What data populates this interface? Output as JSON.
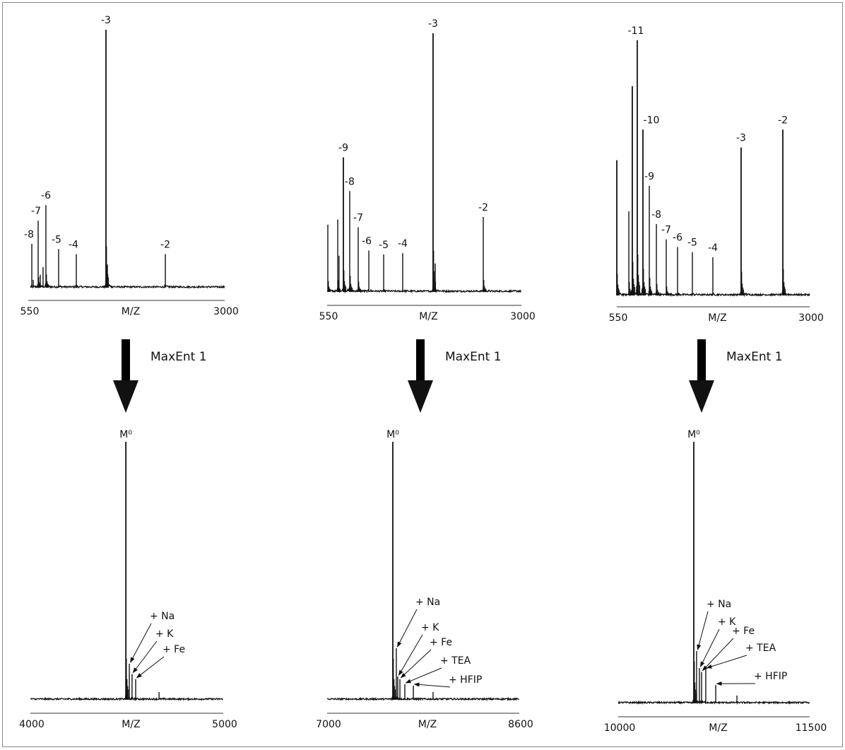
{
  "chart_data": [
    {
      "type": "line",
      "name": "esi-spectrum-1",
      "xlabel": "M/Z",
      "xlim": [
        550,
        3000
      ],
      "tick_labels": [
        "550",
        "3000"
      ],
      "ylabel": "",
      "ylim": [
        0,
        100
      ],
      "peaks": [
        {
          "mz": 568,
          "intensity": 17,
          "label": "-8"
        },
        {
          "mz": 586,
          "intensity": 3,
          "label": ""
        },
        {
          "mz": 648,
          "intensity": 26,
          "label": "-7"
        },
        {
          "mz": 675,
          "intensity": 5,
          "label": ""
        },
        {
          "mz": 710,
          "intensity": 8,
          "label": ""
        },
        {
          "mz": 746,
          "intensity": 32,
          "label": "-6"
        },
        {
          "mz": 906,
          "intensity": 15,
          "label": "-5"
        },
        {
          "mz": 1129,
          "intensity": 13,
          "label": "-4"
        },
        {
          "mz": 1503,
          "intensity": 100,
          "label": "-3"
        },
        {
          "mz": 1521,
          "intensity": 9,
          "label": ""
        },
        {
          "mz": 2252,
          "intensity": 13,
          "label": "-2"
        }
      ]
    },
    {
      "type": "line",
      "name": "esi-spectrum-2",
      "xlabel": "M/Z",
      "xlim": [
        550,
        3000
      ],
      "tick_labels": [
        "550",
        "3000"
      ],
      "ylabel": "",
      "ylim": [
        0,
        100
      ],
      "peaks": [
        {
          "mz": 559,
          "intensity": 26,
          "label": ""
        },
        {
          "mz": 684,
          "intensity": 28,
          "label": ""
        },
        {
          "mz": 700,
          "intensity": 14,
          "label": ""
        },
        {
          "mz": 755,
          "intensity": 52,
          "label": "-9"
        },
        {
          "mz": 835,
          "intensity": 39,
          "label": "-8"
        },
        {
          "mz": 942,
          "intensity": 25,
          "label": "-7"
        },
        {
          "mz": 1076,
          "intensity": 16,
          "label": "-6"
        },
        {
          "mz": 1263,
          "intensity": 14.5,
          "label": "-5"
        },
        {
          "mz": 1503,
          "intensity": 15,
          "label": "-4"
        },
        {
          "mz": 1886,
          "intensity": 100,
          "label": "-3"
        },
        {
          "mz": 1913,
          "intensity": 11,
          "label": ""
        },
        {
          "mz": 2519,
          "intensity": 29,
          "label": "-2"
        }
      ]
    },
    {
      "type": "line",
      "name": "esi-spectrum-3",
      "xlabel": "M/Z",
      "xlim": [
        550,
        3000
      ],
      "tick_labels": [
        "550",
        "3000"
      ],
      "ylabel": "",
      "ylim": [
        0,
        100
      ],
      "peaks": [
        {
          "mz": 550,
          "intensity": 53,
          "label": ""
        },
        {
          "mz": 703,
          "intensity": 33,
          "label": ""
        },
        {
          "mz": 747,
          "intensity": 82,
          "label": ""
        },
        {
          "mz": 810,
          "intensity": 100,
          "label": "-11"
        },
        {
          "mz": 882,
          "intensity": 65,
          "label": "-10"
        },
        {
          "mz": 963,
          "intensity": 43,
          "label": "-9"
        },
        {
          "mz": 1053,
          "intensity": 28,
          "label": "-8"
        },
        {
          "mz": 1178,
          "intensity": 22,
          "label": "-7"
        },
        {
          "mz": 1322,
          "intensity": 19,
          "label": "-6"
        },
        {
          "mz": 1510,
          "intensity": 17,
          "label": "-5"
        },
        {
          "mz": 1770,
          "intensity": 15,
          "label": "-4"
        },
        {
          "mz": 2129,
          "intensity": 58,
          "label": "-3"
        },
        {
          "mz": 2659,
          "intensity": 65,
          "label": "-2"
        }
      ]
    },
    {
      "type": "line",
      "name": "deconvoluted-spectrum-1",
      "xlabel": "M/Z",
      "xlim": [
        4000,
        5000
      ],
      "tick_labels": [
        "4000",
        "5000"
      ],
      "ylabel": "",
      "ylim": [
        0,
        100
      ],
      "peaks": [
        {
          "mz": 4495,
          "intensity": 100,
          "label": "M⁰"
        },
        {
          "mz": 4513,
          "intensity": 14,
          "label": "+ Na"
        },
        {
          "mz": 4527,
          "intensity": 10,
          "label": "+ K"
        },
        {
          "mz": 4546,
          "intensity": 8,
          "label": "+ Fe"
        },
        {
          "mz": 4667,
          "intensity": 3,
          "label": ""
        }
      ]
    },
    {
      "type": "line",
      "name": "deconvoluted-spectrum-2",
      "xlabel": "M/Z",
      "xlim": [
        7000,
        8600
      ],
      "tick_labels": [
        "7000",
        "8600"
      ],
      "ylabel": "",
      "ylim": [
        0,
        100
      ],
      "peaks": [
        {
          "mz": 7547,
          "intensity": 100,
          "label": "M⁰"
        },
        {
          "mz": 7576,
          "intensity": 20,
          "label": "+ Na"
        },
        {
          "mz": 7588,
          "intensity": 9,
          "label": "+ K"
        },
        {
          "mz": 7606,
          "intensity": 8,
          "label": "+ Fe"
        },
        {
          "mz": 7647,
          "intensity": 6,
          "label": "+ TEA"
        },
        {
          "mz": 7718,
          "intensity": 5.5,
          "label": "+ HFIP"
        },
        {
          "mz": 7882,
          "intensity": 3,
          "label": ""
        }
      ]
    },
    {
      "type": "line",
      "name": "deconvoluted-spectrum-3",
      "xlabel": "M/Z",
      "xlim": [
        10000,
        11500
      ],
      "tick_labels": [
        "10000",
        "11500"
      ],
      "ylabel": "",
      "ylim": [
        0,
        100
      ],
      "peaks": [
        {
          "mz": 10592,
          "intensity": 100,
          "label": "M⁰"
        },
        {
          "mz": 10614,
          "intensity": 20,
          "label": "+ Na"
        },
        {
          "mz": 10636,
          "intensity": 13.5,
          "label": "+ K"
        },
        {
          "mz": 10653,
          "intensity": 12,
          "label": "+ Fe"
        },
        {
          "mz": 10686,
          "intensity": 13,
          "label": "+ TEA"
        },
        {
          "mz": 10764,
          "intensity": 7,
          "label": "+ HFIP"
        },
        {
          "mz": 10930,
          "intensity": 3,
          "label": ""
        }
      ]
    }
  ],
  "transforms": [
    {
      "label": "MaxEnt 1"
    },
    {
      "label": "MaxEnt 1"
    },
    {
      "label": "MaxEnt 1"
    }
  ]
}
